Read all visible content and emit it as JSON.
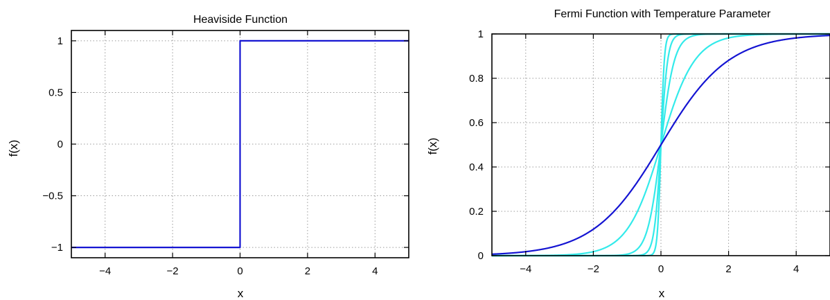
{
  "chart_data": [
    {
      "type": "line",
      "title": "Heaviside Function",
      "xlabel": "x",
      "ylabel": "f(x)",
      "xlim": [
        -5,
        5
      ],
      "ylim": [
        -1.1,
        1.1
      ],
      "xticks": [
        -4,
        -2,
        0,
        2,
        4
      ],
      "yticks": [
        -1,
        -0.5,
        0,
        0.5,
        1
      ],
      "xtick_labels": [
        "−4",
        "−2",
        "0",
        "2",
        "4"
      ],
      "ytick_labels": [
        "−1",
        "−0.5",
        "0",
        "0.5",
        "1"
      ],
      "grid": true,
      "series": [
        {
          "color": "#1414d2",
          "x": [
            -5,
            0,
            0,
            5
          ],
          "y": [
            -1,
            -1,
            1,
            1
          ]
        }
      ]
    },
    {
      "type": "line",
      "title": "Fermi Function with Temperature Parameter",
      "xlabel": "x",
      "ylabel": "f(x)",
      "xlim": [
        -5,
        5
      ],
      "ylim": [
        0,
        1
      ],
      "xticks": [
        -4,
        -2,
        0,
        2,
        4
      ],
      "yticks": [
        0,
        0.2,
        0.4,
        0.6,
        0.8,
        1
      ],
      "xtick_labels": [
        "−4",
        "−2",
        "0",
        "2",
        "4"
      ],
      "ytick_labels": [
        "0",
        "0.2",
        "0.4",
        "0.6",
        "0.8",
        "1"
      ],
      "grid": true,
      "series": [
        {
          "color": "#1414d2",
          "function": "1/(1+exp(-x/T))",
          "T": 1
        },
        {
          "color": "#33eaea",
          "function": "1/(1+exp(-x/T))",
          "T": 0.5
        },
        {
          "color": "#33eaea",
          "function": "1/(1+exp(-x/T))",
          "T": 0.2
        },
        {
          "color": "#33eaea",
          "function": "1/(1+exp(-x/T))",
          "T": 0.1
        },
        {
          "color": "#33eaea",
          "function": "1/(1+exp(-x/T))",
          "T": 0.05
        }
      ]
    }
  ]
}
